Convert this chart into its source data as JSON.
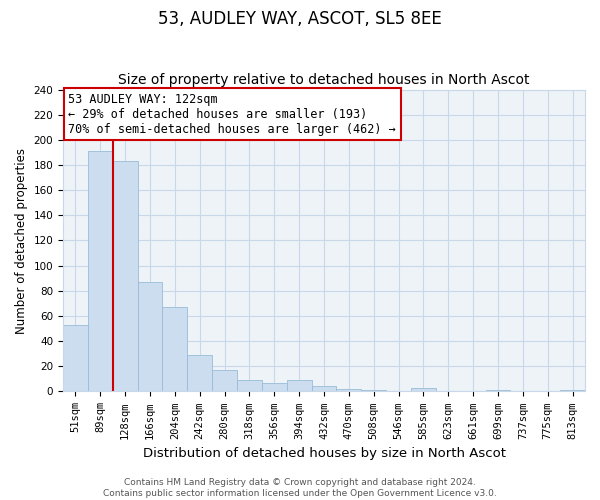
{
  "title": "53, AUDLEY WAY, ASCOT, SL5 8EE",
  "subtitle": "Size of property relative to detached houses in North Ascot",
  "xlabel": "Distribution of detached houses by size in North Ascot",
  "ylabel": "Number of detached properties",
  "categories": [
    "51sqm",
    "89sqm",
    "128sqm",
    "166sqm",
    "204sqm",
    "242sqm",
    "280sqm",
    "318sqm",
    "356sqm",
    "394sqm",
    "432sqm",
    "470sqm",
    "508sqm",
    "546sqm",
    "585sqm",
    "623sqm",
    "661sqm",
    "699sqm",
    "737sqm",
    "775sqm",
    "813sqm"
  ],
  "values": [
    53,
    191,
    183,
    87,
    67,
    29,
    17,
    9,
    7,
    9,
    4,
    2,
    1,
    0,
    3,
    0,
    0,
    1,
    0,
    0,
    1
  ],
  "bar_color": "#ccddf0",
  "bar_edge_color": "#99bbd8",
  "vline_x": 1.5,
  "vline_color": "#cc0000",
  "annotation_box_text": "53 AUDLEY WAY: 122sqm\n← 29% of detached houses are smaller (193)\n70% of semi-detached houses are larger (462) →",
  "box_edge_color": "#cc0000",
  "ylim": [
    0,
    240
  ],
  "yticks": [
    0,
    20,
    40,
    60,
    80,
    100,
    120,
    140,
    160,
    180,
    200,
    220,
    240
  ],
  "footer_line1": "Contains HM Land Registry data © Crown copyright and database right 2024.",
  "footer_line2": "Contains public sector information licensed under the Open Government Licence v3.0.",
  "title_fontsize": 12,
  "subtitle_fontsize": 10,
  "xlabel_fontsize": 9.5,
  "ylabel_fontsize": 8.5,
  "tick_fontsize": 7.5,
  "annotation_fontsize": 8.5,
  "footer_fontsize": 6.5,
  "grid_color": "#c8d8e8",
  "background_color": "#ffffff",
  "plot_bg_color": "#eef3f8"
}
